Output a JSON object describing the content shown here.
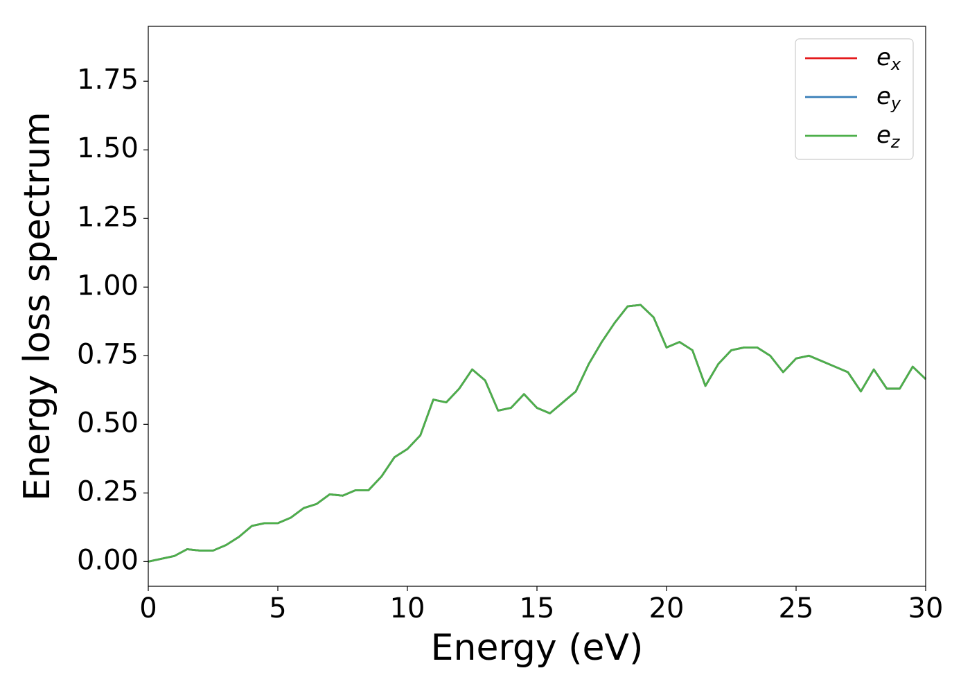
{
  "chart_data": {
    "type": "line",
    "xlabel": "Energy (eV)",
    "ylabel": "Energy loss spectrum",
    "x": [
      0,
      0.5,
      1,
      1.5,
      2,
      2.5,
      3,
      3.5,
      4,
      4.5,
      5,
      5.5,
      6,
      6.5,
      7,
      7.5,
      8,
      8.5,
      9,
      9.5,
      10,
      10.5,
      11,
      11.5,
      12,
      12.5,
      13,
      13.5,
      14,
      14.5,
      15,
      15.5,
      16,
      16.5,
      17,
      17.5,
      18,
      18.5,
      19,
      19.5,
      20,
      20.5,
      21,
      21.5,
      22,
      22.5,
      23,
      23.5,
      24,
      24.5,
      25,
      25.5,
      26,
      26.5,
      27,
      27.5,
      28,
      28.5,
      29,
      29.5,
      30
    ],
    "series": [
      {
        "name": "e_x",
        "color": "#e41a1c",
        "values": [
          0,
          0.01,
          0.02,
          0.045,
          0.04,
          0.04,
          0.06,
          0.09,
          0.13,
          0.14,
          0.14,
          0.16,
          0.195,
          0.21,
          0.245,
          0.24,
          0.26,
          0.26,
          0.31,
          0.38,
          0.41,
          0.46,
          0.59,
          0.58,
          0.63,
          0.7,
          0.66,
          0.55,
          0.56,
          0.61,
          0.56,
          0.54,
          0.58,
          0.62,
          0.72,
          0.8,
          0.87,
          0.93,
          0.935,
          0.89,
          0.78,
          0.8,
          0.77,
          0.64,
          0.72,
          0.77,
          0.78,
          0.78,
          0.75,
          0.69,
          0.74,
          0.75,
          0.73,
          0.71,
          0.69,
          0.62,
          0.7,
          0.63,
          0.63,
          0.71,
          0.665
        ]
      },
      {
        "name": "e_y",
        "color": "#377eb8",
        "values": [
          0,
          0.01,
          0.02,
          0.045,
          0.04,
          0.04,
          0.06,
          0.09,
          0.13,
          0.14,
          0.14,
          0.16,
          0.195,
          0.21,
          0.245,
          0.24,
          0.26,
          0.26,
          0.31,
          0.38,
          0.41,
          0.46,
          0.59,
          0.58,
          0.63,
          0.7,
          0.66,
          0.55,
          0.56,
          0.61,
          0.56,
          0.54,
          0.58,
          0.62,
          0.72,
          0.8,
          0.87,
          0.93,
          0.935,
          0.89,
          0.78,
          0.8,
          0.77,
          0.64,
          0.72,
          0.77,
          0.78,
          0.78,
          0.75,
          0.69,
          0.74,
          0.75,
          0.73,
          0.71,
          0.69,
          0.62,
          0.7,
          0.63,
          0.63,
          0.71,
          0.665
        ]
      },
      {
        "name": "e_z",
        "color": "#4daf4a",
        "values": [
          0,
          0.01,
          0.02,
          0.045,
          0.04,
          0.04,
          0.06,
          0.09,
          0.13,
          0.14,
          0.14,
          0.16,
          0.195,
          0.21,
          0.245,
          0.24,
          0.26,
          0.26,
          0.31,
          0.38,
          0.41,
          0.46,
          0.59,
          0.58,
          0.63,
          0.7,
          0.66,
          0.55,
          0.56,
          0.61,
          0.56,
          0.54,
          0.58,
          0.62,
          0.72,
          0.8,
          0.87,
          0.93,
          0.935,
          0.89,
          0.78,
          0.8,
          0.77,
          0.64,
          0.72,
          0.77,
          0.78,
          0.78,
          0.75,
          0.69,
          0.74,
          0.75,
          0.73,
          0.71,
          0.69,
          0.62,
          0.7,
          0.63,
          0.63,
          0.71,
          0.665
        ]
      }
    ],
    "xlim": [
      0,
      30
    ],
    "xticks": [
      0,
      5,
      10,
      15,
      20,
      25,
      30
    ],
    "ylim": [
      -0.09,
      1.95
    ],
    "yticks": [
      {
        "value": 0,
        "label": "0.00"
      },
      {
        "value": 0.25,
        "label": "0.25"
      },
      {
        "value": 0.5,
        "label": "0.50"
      },
      {
        "value": 0.75,
        "label": "0.75"
      },
      {
        "value": 1,
        "label": "1.00"
      },
      {
        "value": 1.25,
        "label": "1.25"
      },
      {
        "value": 1.5,
        "label": "1.50"
      },
      {
        "value": 1.75,
        "label": "1.75"
      }
    ],
    "grid": false,
    "legend": "upper right"
  }
}
